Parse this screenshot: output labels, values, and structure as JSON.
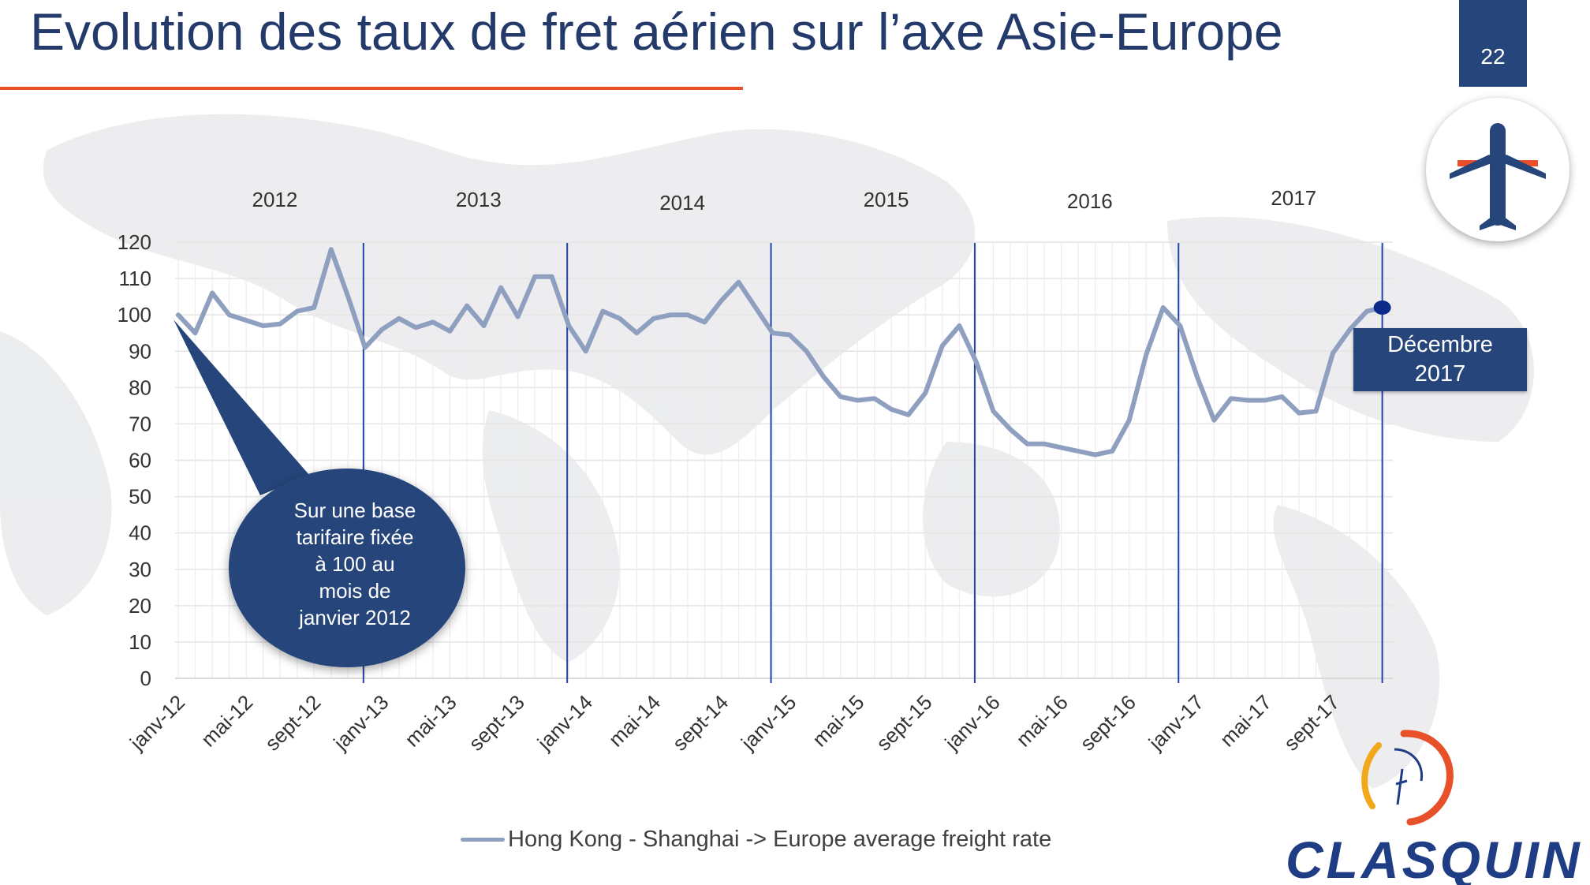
{
  "slide": {
    "title": "Evolution des taux de fret aérien sur l’axe Asie-Europe",
    "page_number": "22",
    "accent_color": "#e8502a",
    "brand_color": "#26457a",
    "badge_icon": "airplane-icon",
    "logo_text": "CLASQUIN"
  },
  "callout": {
    "lines": [
      "Sur une base",
      "tarifaire fixée",
      "à 100 au",
      "mois de",
      "janvier 2012"
    ]
  },
  "end_marker": {
    "lines": [
      "Décembre",
      "2017"
    ]
  },
  "chart_data": {
    "type": "line",
    "title": "",
    "xlabel": "",
    "ylabel": "",
    "ylim": [
      0,
      120
    ],
    "yticks": [
      0,
      10,
      20,
      30,
      40,
      50,
      60,
      70,
      80,
      90,
      100,
      110,
      120
    ],
    "grid": true,
    "legend_position": "bottom",
    "tick_labels": [
      "janv-12",
      "mai-12",
      "sept-12",
      "janv-13",
      "mai-13",
      "sept-13",
      "janv-14",
      "mai-14",
      "sept-14",
      "janv-15",
      "mai-15",
      "sept-15",
      "janv-16",
      "mai-16",
      "sept-16",
      "janv-17",
      "mai-17",
      "sept-17"
    ],
    "year_labels": [
      "2012",
      "2013",
      "2014",
      "2015",
      "2016",
      "2017"
    ],
    "year_separators_after": [
      "déc-12",
      "déc-13",
      "déc-14",
      "déc-15",
      "déc-16",
      "déc-17"
    ],
    "highlighted_point": {
      "x": "déc-17",
      "y": 102
    },
    "series": [
      {
        "name": "Hong Kong - Shanghai -> Europe average freight rate",
        "color": "#8f9fbf",
        "x": [
          "janv-12",
          "févr-12",
          "mars-12",
          "avr-12",
          "mai-12",
          "juin-12",
          "juil-12",
          "août-12",
          "sept-12",
          "oct-12",
          "nov-12",
          "déc-12",
          "janv-13",
          "févr-13",
          "mars-13",
          "avr-13",
          "mai-13",
          "juin-13",
          "juil-13",
          "août-13",
          "sept-13",
          "oct-13",
          "nov-13",
          "déc-13",
          "janv-14",
          "févr-14",
          "mars-14",
          "avr-14",
          "mai-14",
          "juin-14",
          "juil-14",
          "août-14",
          "sept-14",
          "oct-14",
          "nov-14",
          "déc-14",
          "janv-15",
          "févr-15",
          "mars-15",
          "avr-15",
          "mai-15",
          "juin-15",
          "juil-15",
          "août-15",
          "sept-15",
          "oct-15",
          "nov-15",
          "déc-15",
          "janv-16",
          "févr-16",
          "mars-16",
          "avr-16",
          "mai-16",
          "juin-16",
          "juil-16",
          "août-16",
          "sept-16",
          "oct-16",
          "nov-16",
          "déc-16",
          "janv-17",
          "févr-17",
          "mars-17",
          "avr-17",
          "mai-17",
          "juin-17",
          "juil-17",
          "août-17",
          "sept-17",
          "oct-17",
          "nov-17",
          "déc-17"
        ],
        "values": [
          100,
          95,
          106,
          100,
          98.5,
          97,
          97.5,
          101,
          102,
          118,
          105,
          91,
          96,
          99,
          96.5,
          98,
          95.5,
          102.5,
          97,
          107.5,
          99.5,
          110.5,
          110.5,
          97,
          90,
          101,
          99,
          95,
          99,
          100,
          100,
          98,
          104,
          109,
          102,
          95,
          94.5,
          90,
          83,
          77.5,
          76.5,
          77,
          74,
          72.5,
          78.5,
          91.5,
          97,
          87,
          73.5,
          68.5,
          64.5,
          64.5,
          63.5,
          62.5,
          61.5,
          62.5,
          71,
          89,
          102,
          97,
          83,
          71,
          77,
          76.5,
          76.5,
          77.5,
          73,
          73.5,
          89.5,
          96,
          101,
          102
        ]
      }
    ]
  }
}
